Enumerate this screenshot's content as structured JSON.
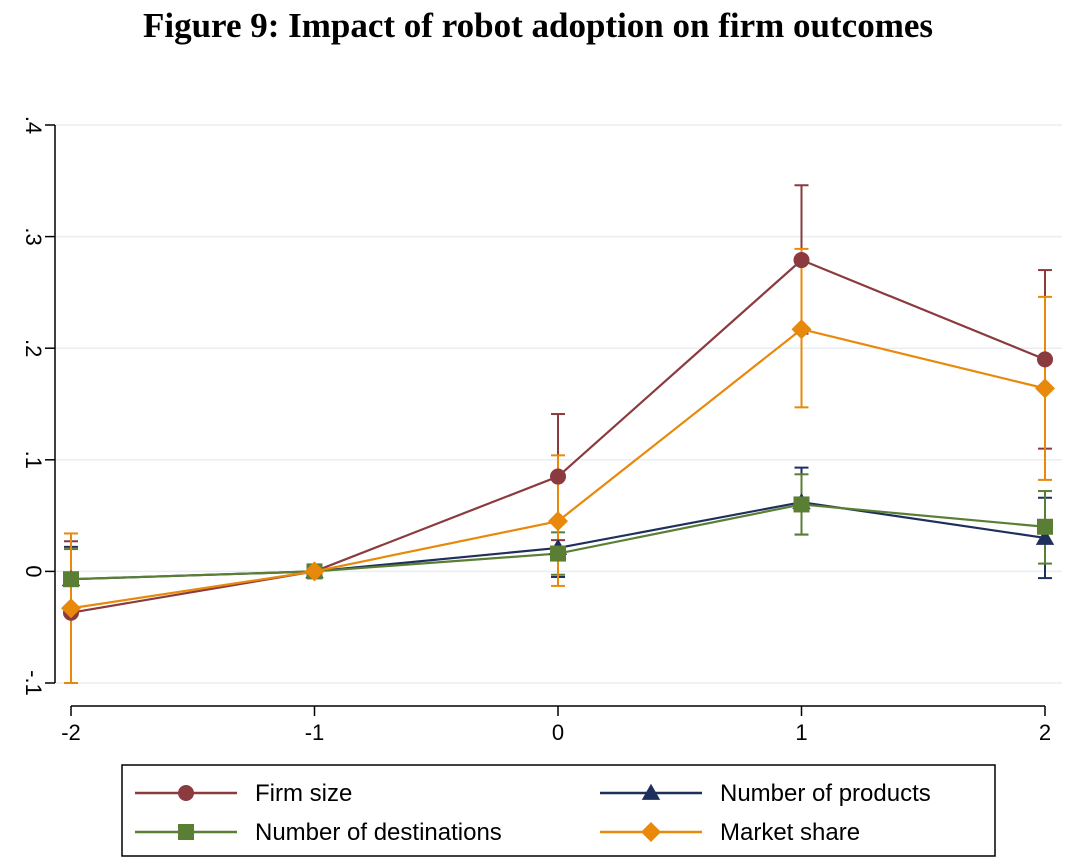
{
  "title": "Figure 9: Impact of robot adoption on firm outcomes",
  "chart_data": {
    "type": "line",
    "x": [
      -2,
      -1,
      0,
      1,
      2
    ],
    "xlim": [
      -2,
      2
    ],
    "ylim": [
      -0.1,
      0.4
    ],
    "x_ticks": [
      -2,
      -1,
      0,
      1,
      2
    ],
    "x_tick_labels": [
      "-2",
      "-1",
      "0",
      "1",
      "2"
    ],
    "y_ticks": [
      -0.1,
      0,
      0.1,
      0.2,
      0.3,
      0.4
    ],
    "y_tick_labels": [
      "-.1",
      "0",
      ".1",
      ".2",
      ".3",
      ".4"
    ],
    "grid": true,
    "legend_position": "bottom",
    "series": [
      {
        "name": "Firm size",
        "color": "#8b3a3e",
        "marker": "circle",
        "values": [
          -0.037,
          0,
          0.085,
          0.279,
          0.19
        ],
        "ci_low": [
          -0.1,
          0,
          0.028,
          0.213,
          0.11
        ],
        "ci_high": [
          0.027,
          0,
          0.141,
          0.346,
          0.27
        ]
      },
      {
        "name": "Number of products",
        "color": "#1f2f5c",
        "marker": "triangle",
        "values": [
          -0.007,
          0,
          0.021,
          0.062,
          0.03
        ],
        "ci_low": [
          -0.035,
          0,
          -0.005,
          0.033,
          -0.006
        ],
        "ci_high": [
          0.022,
          0,
          0.046,
          0.093,
          0.066
        ]
      },
      {
        "name": "Number of destinations",
        "color": "#5a7f34",
        "marker": "square",
        "values": [
          -0.007,
          0,
          0.016,
          0.06,
          0.04
        ],
        "ci_low": [
          -0.035,
          0,
          -0.003,
          0.033,
          0.007
        ],
        "ci_high": [
          0.02,
          0,
          0.035,
          0.087,
          0.072
        ]
      },
      {
        "name": "Market share",
        "color": "#e8890c",
        "marker": "diamond",
        "values": [
          -0.033,
          0,
          0.045,
          0.217,
          0.164
        ],
        "ci_low": [
          -0.1,
          0,
          -0.013,
          0.147,
          0.082
        ],
        "ci_high": [
          0.034,
          0,
          0.104,
          0.289,
          0.246
        ]
      }
    ]
  }
}
